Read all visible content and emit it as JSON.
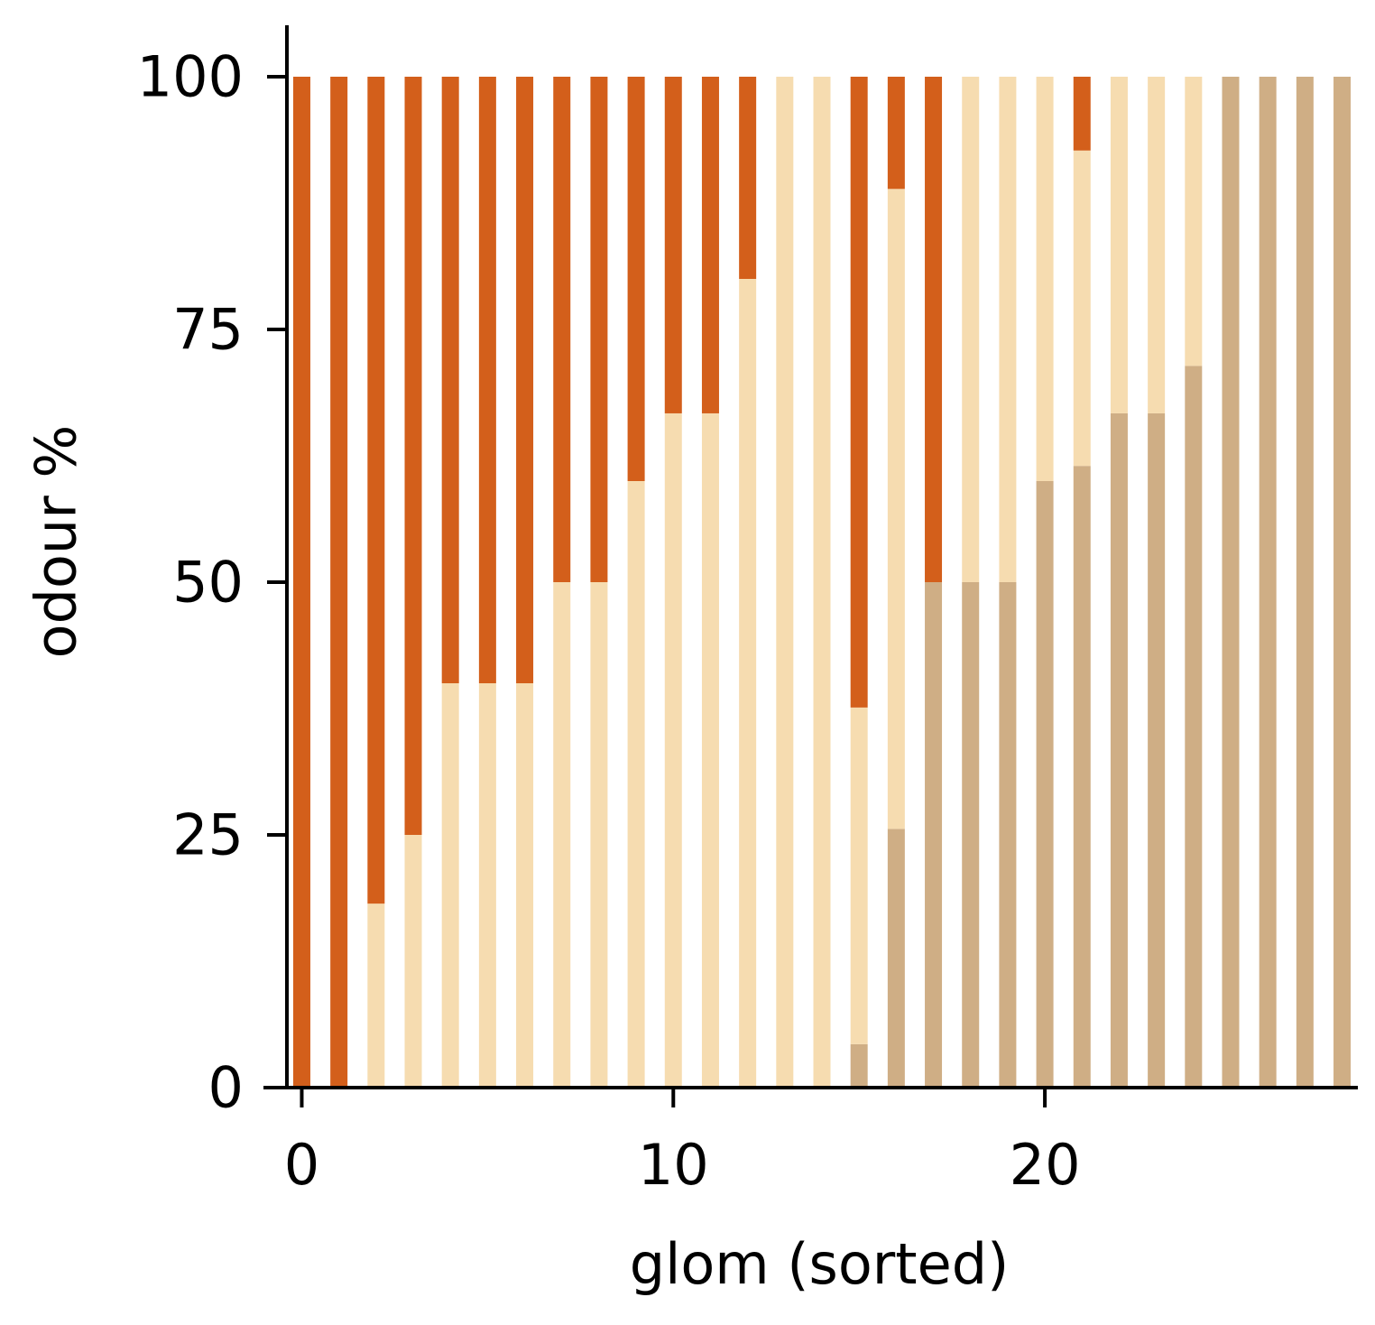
{
  "chart_data": {
    "type": "bar",
    "stacked": true,
    "title": "",
    "xlabel": "glom (sorted)",
    "ylabel": "odour %",
    "xlim": [
      -0.4,
      28.4
    ],
    "ylim": [
      0,
      100
    ],
    "xticks": [
      0,
      10,
      20
    ],
    "yticks": [
      0,
      25,
      50,
      75,
      100
    ],
    "grid": false,
    "colors": {
      "series_bottom": "#CFAE85",
      "series_middle": "#F6DCB0",
      "series_top": "#D35F1B"
    },
    "x": [
      0,
      1,
      2,
      3,
      4,
      5,
      6,
      7,
      8,
      9,
      10,
      11,
      12,
      13,
      14,
      15,
      16,
      17,
      18,
      19,
      20,
      21,
      22,
      23,
      24,
      25,
      26,
      27,
      28
    ],
    "series": [
      {
        "values": [
          0,
          0,
          0,
          0,
          0,
          0,
          0,
          0,
          0,
          0,
          0,
          0,
          0,
          0,
          0,
          4.3,
          25.6,
          50,
          50,
          50,
          60,
          61.5,
          66.7,
          66.7,
          71.4,
          100,
          100,
          100,
          100
        ]
      },
      {
        "values": [
          0,
          0,
          18.2,
          25,
          40,
          40,
          40,
          50,
          50,
          60,
          66.7,
          66.7,
          80,
          100,
          100,
          33.3,
          63.3,
          0,
          50,
          50,
          40,
          31.2,
          33.3,
          33.3,
          28.6,
          0,
          0,
          0,
          0
        ]
      },
      {
        "values": [
          100,
          100,
          81.8,
          75,
          60,
          60,
          60,
          50,
          50,
          40,
          33.3,
          33.3,
          20,
          0,
          0,
          62.4,
          11.1,
          50,
          0,
          0,
          0,
          7.3,
          0,
          0,
          0,
          0,
          0,
          0,
          0
        ]
      }
    ]
  }
}
